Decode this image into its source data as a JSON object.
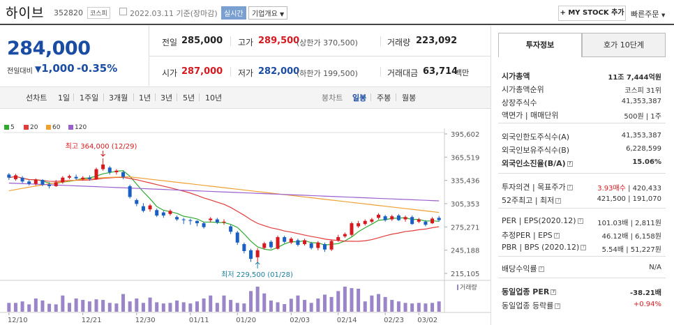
{
  "header": {
    "name": "하이브",
    "code": "352820",
    "market": "코스피",
    "date_text": "2022.03.11 기준(장마감)",
    "realtime_label": "실시간",
    "corp_label": "기업개요",
    "mystock_label": "+ MY STOCK 추가",
    "quick_label": "빠른주문"
  },
  "price": {
    "current": "284,000",
    "prev_label": "전일대비",
    "change": "1,000",
    "change_pct": "-0.35%"
  },
  "summary": {
    "prev_close_label": "전일",
    "prev_close": "285,000",
    "high_label": "고가",
    "high": "289,500",
    "upper_limit": "(상한가 370,500)",
    "volume_label": "거래량",
    "volume": "223,092",
    "open_label": "시가",
    "open": "287,000",
    "low_label": "저가",
    "low": "282,000",
    "lower_limit": "(하한가 199,500)",
    "amount_label": "거래대금",
    "amount": "63,714",
    "amount_unit": "백만"
  },
  "period_tabs": {
    "line_label": "선차트",
    "items": [
      "1일",
      "1주일",
      "3개월",
      "1년",
      "3년",
      "5년",
      "10년"
    ],
    "candle_label": "봉차트",
    "candle_items": [
      "일봉",
      "주봉",
      "월봉"
    ],
    "active_candle": "일봉"
  },
  "colors": {
    "ma5": "#2eaa2e",
    "ma20": "#e23b3b",
    "ma60": "#f0a030",
    "ma120": "#9a60d0",
    "up": "#d6191f",
    "down": "#1a5fc4",
    "volume": "#9a85c8"
  },
  "chart_data": {
    "type": "candlestick",
    "legend": [
      "5",
      "20",
      "60",
      "120"
    ],
    "y_ticks": [
      "395,602",
      "365,519",
      "335,436",
      "305,353",
      "275,271",
      "245,188",
      "215,105"
    ],
    "ylim": [
      215105,
      395602
    ],
    "x_ticks": [
      "12/10",
      "12/21",
      "12/30",
      "01/11",
      "01/20",
      "02/03",
      "02/14",
      "02/23",
      "03/02"
    ],
    "volume_label": "거래량",
    "annotations": {
      "high": "최고 364,000 (12/29)",
      "low": "최저 229,500 (01/28)"
    },
    "candles": [
      {
        "o": 343000,
        "c": 339000,
        "h": 345000,
        "l": 336000
      },
      {
        "o": 337000,
        "c": 342000,
        "h": 344000,
        "l": 335000
      },
      {
        "o": 339000,
        "c": 334000,
        "h": 341000,
        "l": 332000
      },
      {
        "o": 334000,
        "c": 331000,
        "h": 336000,
        "l": 329000
      },
      {
        "o": 331000,
        "c": 336000,
        "h": 338000,
        "l": 329000
      },
      {
        "o": 336000,
        "c": 330000,
        "h": 337000,
        "l": 328000
      },
      {
        "o": 330000,
        "c": 328000,
        "h": 333000,
        "l": 325000
      },
      {
        "o": 328000,
        "c": 333000,
        "h": 336000,
        "l": 327000
      },
      {
        "o": 333000,
        "c": 339000,
        "h": 341000,
        "l": 331000
      },
      {
        "o": 339000,
        "c": 341000,
        "h": 343000,
        "l": 337000
      },
      {
        "o": 340000,
        "c": 338000,
        "h": 343000,
        "l": 336000
      },
      {
        "o": 337000,
        "c": 339000,
        "h": 341000,
        "l": 335000
      },
      {
        "o": 339000,
        "c": 337000,
        "h": 342000,
        "l": 335000
      },
      {
        "o": 337000,
        "c": 350000,
        "h": 352000,
        "l": 336000
      },
      {
        "o": 350000,
        "c": 356000,
        "h": 364000,
        "l": 348000
      },
      {
        "o": 352000,
        "c": 346000,
        "h": 354000,
        "l": 343000
      },
      {
        "o": 346000,
        "c": 348000,
        "h": 350000,
        "l": 343000
      },
      {
        "o": 346000,
        "c": 340000,
        "h": 348000,
        "l": 337000
      },
      {
        "o": 328000,
        "c": 314000,
        "h": 330000,
        "l": 312000
      },
      {
        "o": 310000,
        "c": 305000,
        "h": 312000,
        "l": 302000
      },
      {
        "o": 302000,
        "c": 296000,
        "h": 306000,
        "l": 294000
      },
      {
        "o": 298000,
        "c": 303000,
        "h": 305000,
        "l": 295000
      },
      {
        "o": 297000,
        "c": 290000,
        "h": 299000,
        "l": 288000
      },
      {
        "o": 294000,
        "c": 290000,
        "h": 296000,
        "l": 287000
      },
      {
        "o": 292000,
        "c": 296000,
        "h": 298000,
        "l": 290000
      },
      {
        "o": 288000,
        "c": 285000,
        "h": 290000,
        "l": 283000
      },
      {
        "o": 285000,
        "c": 284000,
        "h": 287000,
        "l": 279000
      },
      {
        "o": 284000,
        "c": 283000,
        "h": 286000,
        "l": 278000
      },
      {
        "o": 283000,
        "c": 280000,
        "h": 284000,
        "l": 276000
      },
      {
        "o": 280000,
        "c": 275000,
        "h": 282000,
        "l": 273000
      },
      {
        "o": 284000,
        "c": 286000,
        "h": 288000,
        "l": 281000
      },
      {
        "o": 285000,
        "c": 281000,
        "h": 287000,
        "l": 279000
      },
      {
        "o": 281000,
        "c": 282000,
        "h": 285000,
        "l": 278000
      },
      {
        "o": 276000,
        "c": 269000,
        "h": 278000,
        "l": 266000
      },
      {
        "o": 268000,
        "c": 255000,
        "h": 270000,
        "l": 252000
      },
      {
        "o": 253000,
        "c": 244000,
        "h": 255000,
        "l": 241000
      },
      {
        "o": 245000,
        "c": 234000,
        "h": 247000,
        "l": 230000
      },
      {
        "o": 236000,
        "c": 245000,
        "h": 248000,
        "l": 229500
      },
      {
        "o": 248000,
        "c": 254000,
        "h": 256000,
        "l": 246000
      },
      {
        "o": 256000,
        "c": 249000,
        "h": 258000,
        "l": 247000
      },
      {
        "o": 247000,
        "c": 262000,
        "h": 264000,
        "l": 246000
      },
      {
        "o": 262000,
        "c": 256000,
        "h": 264000,
        "l": 254000
      },
      {
        "o": 255000,
        "c": 260000,
        "h": 262000,
        "l": 253000
      },
      {
        "o": 258000,
        "c": 252000,
        "h": 260000,
        "l": 250000
      },
      {
        "o": 253000,
        "c": 258000,
        "h": 260000,
        "l": 251000
      },
      {
        "o": 254000,
        "c": 248000,
        "h": 256000,
        "l": 246000
      },
      {
        "o": 248000,
        "c": 255000,
        "h": 257000,
        "l": 245000
      },
      {
        "o": 253000,
        "c": 246000,
        "h": 255000,
        "l": 243000
      },
      {
        "o": 246000,
        "c": 257000,
        "h": 259000,
        "l": 244000
      },
      {
        "o": 258000,
        "c": 262000,
        "h": 265000,
        "l": 256000
      },
      {
        "o": 263000,
        "c": 266000,
        "h": 268000,
        "l": 261000
      },
      {
        "o": 265000,
        "c": 280000,
        "h": 282000,
        "l": 263000
      },
      {
        "o": 276000,
        "c": 280000,
        "h": 283000,
        "l": 274000
      },
      {
        "o": 279000,
        "c": 283000,
        "h": 285000,
        "l": 277000
      },
      {
        "o": 282000,
        "c": 285000,
        "h": 287000,
        "l": 280000
      },
      {
        "o": 287000,
        "c": 291000,
        "h": 293000,
        "l": 285000
      },
      {
        "o": 289000,
        "c": 284000,
        "h": 291000,
        "l": 282000
      },
      {
        "o": 285000,
        "c": 289000,
        "h": 291000,
        "l": 283000
      },
      {
        "o": 290000,
        "c": 284000,
        "h": 292000,
        "l": 283000
      },
      {
        "o": 285000,
        "c": 288000,
        "h": 290000,
        "l": 282000
      },
      {
        "o": 288000,
        "c": 279000,
        "h": 290000,
        "l": 278000
      },
      {
        "o": 282000,
        "c": 285000,
        "h": 287000,
        "l": 280000
      },
      {
        "o": 282000,
        "c": 278000,
        "h": 284000,
        "l": 276000
      },
      {
        "o": 280000,
        "c": 286000,
        "h": 288000,
        "l": 279000
      },
      {
        "o": 287000,
        "c": 284000,
        "h": 289500,
        "l": 282000
      }
    ],
    "volumes": [
      30,
      30,
      35,
      25,
      45,
      38,
      27,
      25,
      55,
      30,
      45,
      40,
      35,
      42,
      40,
      30,
      28,
      60,
      35,
      45,
      30,
      48,
      32,
      28,
      30,
      38,
      32,
      28,
      35,
      45,
      55,
      30,
      55,
      40,
      30,
      28,
      70,
      85,
      62,
      38,
      32,
      26,
      44,
      55,
      40,
      30,
      45,
      58,
      50,
      70,
      85,
      80,
      78,
      35,
      55,
      60,
      50,
      40,
      35,
      30,
      28,
      30,
      28,
      30,
      35
    ]
  },
  "invest": {
    "tabs": [
      "투자정보",
      "호가 10단계"
    ],
    "rows": [
      {
        "label": "시가총액",
        "value": "11조 7,444억원",
        "bold": true
      },
      {
        "label": "시가총액순위",
        "value": "코스피 31위"
      },
      {
        "label": "상장주식수",
        "value": "41,353,387"
      },
      {
        "label": "액면가 | 매매단위",
        "value": "500원 | 1주"
      },
      {
        "label": "외국인한도주식수(A)",
        "value": "41,353,387"
      },
      {
        "label": "외국인보유주식수(B)",
        "value": "6,228,599"
      },
      {
        "label": "외국인소진율(B/A)",
        "value": "15.06%",
        "bold": true
      },
      {
        "label": "투자의견 | 목표주가",
        "value_red": "3.93매수",
        "value": "420,433"
      },
      {
        "label": "52주최고 | 최저",
        "value": "421,500 | 191,070"
      },
      {
        "label": "PER | EPS(2020.12)",
        "value": "101.03배 | 2,811원"
      },
      {
        "label": "추정PER | EPS",
        "value": "46.12배 | 6,158원"
      },
      {
        "label": "PBR | BPS (2020.12)",
        "value": "5.54배 | 51,227원"
      },
      {
        "label": "배당수익률",
        "value": "N/A"
      },
      {
        "label": "동일업종 PER",
        "value": "-38.21배",
        "bold": true
      },
      {
        "label": "동일업종 등락률",
        "value": "+0.94%",
        "red": true
      }
    ]
  }
}
